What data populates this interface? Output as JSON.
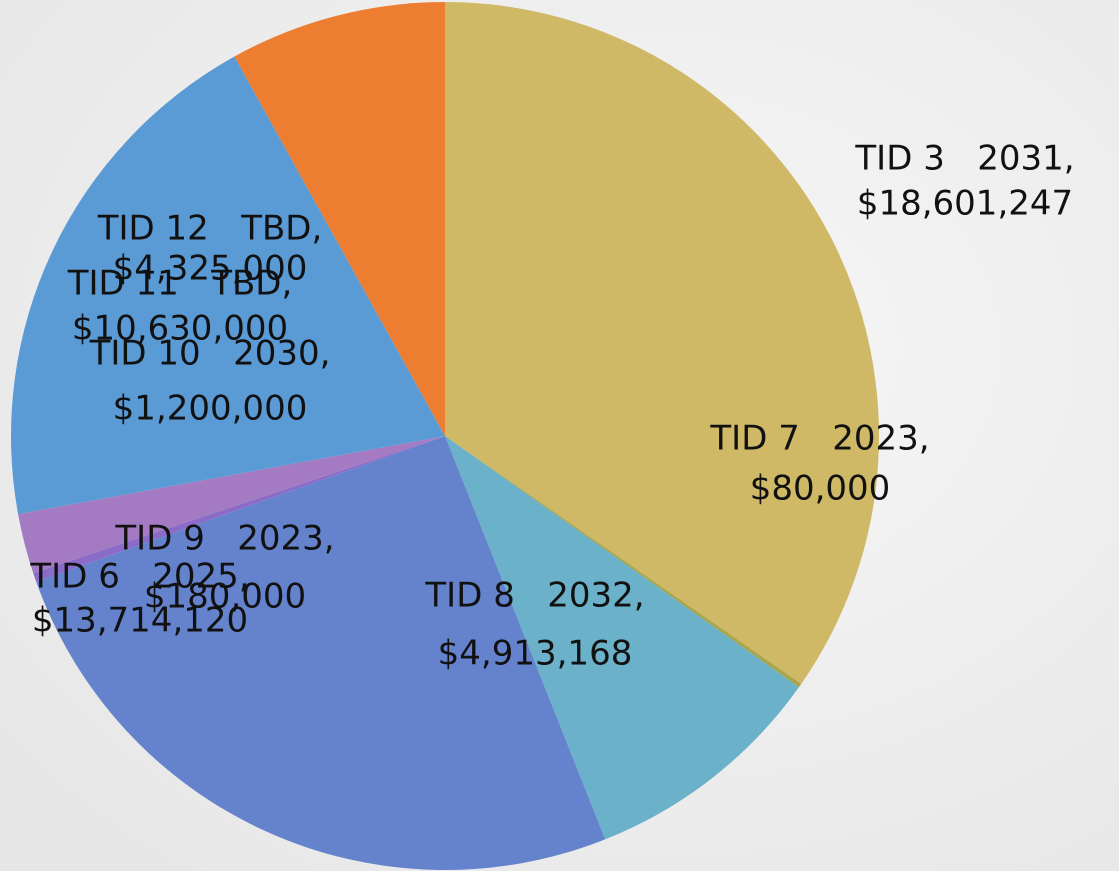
{
  "chart_data": {
    "type": "pie",
    "categories": [
      "TID 3   2031,",
      "TID 7   2023,",
      "TID 8   2032,",
      "TID 6   2025,",
      "TID 9   2023,",
      "TID 10   2030,",
      "TID 11   TBD,",
      "TID 12   TBD,"
    ],
    "values": [
      18601247,
      80000,
      4913168,
      13714120,
      180000,
      1200000,
      10630000,
      4325000
    ],
    "value_labels": [
      "$18,601,247",
      "$80,000",
      "$4,913,168",
      "$13,714,120",
      "$180,000",
      "$1,200,000",
      "$10,630,000",
      "$4,325,000"
    ],
    "colors": [
      "#cfb966",
      "#a9a64a",
      "#6ab1c9",
      "#6583cd",
      "#8a6cc8",
      "#a47bc3",
      "#5b9bd5",
      "#ed7d31"
    ]
  }
}
